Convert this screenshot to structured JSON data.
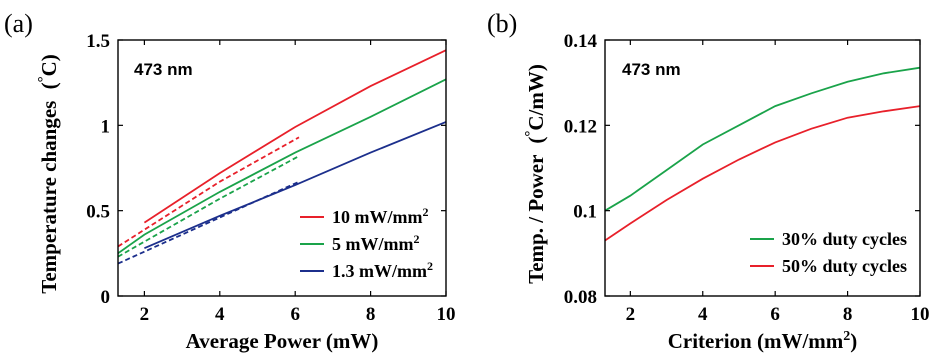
{
  "chart_data": [
    {
      "panel": "(a)",
      "type": "line",
      "annotation": "473 nm",
      "xlabel": "Average Power (mW)",
      "ylabel": "Temperature changes (°C)",
      "ylabel_main": "Temperature changes",
      "ylabel_unit_open": "(",
      "ylabel_unit_deg": "°",
      "ylabel_unit_close": "C)",
      "xlim": [
        1.3,
        10
      ],
      "ylim": [
        0,
        1.5
      ],
      "xticks": [
        2,
        4,
        6,
        8,
        10
      ],
      "yticks": [
        0,
        0.5,
        1,
        1.5
      ],
      "ytick_labels": [
        "0",
        "0.5",
        "1",
        "1.5"
      ],
      "legend_position": "bottom-right",
      "series": [
        {
          "name": "10 mW/mm²",
          "legend_main": "10 mW/mm",
          "legend_sup": "2",
          "color": "#e8202a",
          "style": "solid",
          "x": [
            2,
            4,
            6,
            8,
            10
          ],
          "y": [
            0.43,
            0.72,
            0.99,
            1.23,
            1.44
          ]
        },
        {
          "color": "#e8202a",
          "style": "dashed",
          "x": [
            1.3,
            4,
            6.1
          ],
          "y": [
            0.29,
            0.67,
            0.93
          ]
        },
        {
          "name": "5 mW/mm²",
          "legend_main": "5 mW/mm",
          "legend_sup": "2",
          "color": "#1aa34a",
          "style": "solid",
          "x": [
            1.3,
            2,
            4,
            6,
            8,
            10
          ],
          "y": [
            0.25,
            0.36,
            0.61,
            0.84,
            1.05,
            1.27
          ]
        },
        {
          "color": "#1aa34a",
          "style": "dashed",
          "x": [
            1.3,
            4,
            6.1
          ],
          "y": [
            0.23,
            0.57,
            0.82
          ]
        },
        {
          "name": "1.3 mW/mm²",
          "legend_main": "1.3 mW/mm",
          "legend_sup": "2",
          "color": "#1c2f8c",
          "style": "solid",
          "x": [
            2,
            4,
            6,
            8,
            10
          ],
          "y": [
            0.28,
            0.47,
            0.65,
            0.84,
            1.02
          ]
        },
        {
          "color": "#1c2f8c",
          "style": "dashed",
          "x": [
            1.3,
            4,
            6.1
          ],
          "y": [
            0.19,
            0.46,
            0.67
          ]
        }
      ]
    },
    {
      "panel": "(b)",
      "type": "line",
      "annotation": "473 nm",
      "xlabel": "Criterion (mW/mm²)",
      "xlabel_main": "Criterion (mW/mm",
      "xlabel_sup": "2",
      "xlabel_close": ")",
      "ylabel": "Temp. / Power (°C/mW)",
      "ylabel_main": "Temp. / Power",
      "ylabel_unit_open": "(",
      "ylabel_unit_deg": "°",
      "ylabel_unit_close": "C/mW)",
      "xlim": [
        1.3,
        10
      ],
      "ylim": [
        0.08,
        0.14
      ],
      "xticks": [
        2,
        4,
        6,
        8,
        10
      ],
      "yticks": [
        0.08,
        0.1,
        0.12,
        0.14
      ],
      "ytick_labels": [
        "0.08",
        "0.1",
        "0.12",
        "0.14"
      ],
      "legend_position": "bottom-right",
      "series": [
        {
          "name": "30% duty cycles",
          "color": "#1aa34a",
          "style": "solid",
          "x": [
            1.3,
            2,
            3,
            4,
            5,
            6,
            7,
            8,
            9,
            10
          ],
          "y": [
            0.1,
            0.1035,
            0.1095,
            0.1155,
            0.12,
            0.1245,
            0.1275,
            0.1302,
            0.1322,
            0.1335
          ]
        },
        {
          "name": "50% duty cycles",
          "color": "#e8202a",
          "style": "solid",
          "x": [
            1.3,
            2,
            3,
            4,
            5,
            6,
            7,
            8,
            9,
            10
          ],
          "y": [
            0.093,
            0.097,
            0.1025,
            0.1075,
            0.112,
            0.116,
            0.1192,
            0.1218,
            0.1233,
            0.1245
          ]
        }
      ]
    }
  ]
}
